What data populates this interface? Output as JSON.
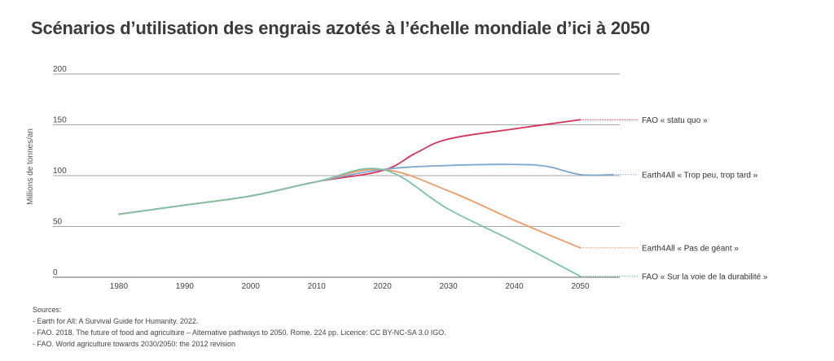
{
  "chart_data": {
    "type": "line",
    "title": "Scénarios d’utilisation des engrais azotés à l’échelle mondiale d’ici à 2050",
    "ylabel": "Millions de tonnes/an",
    "xlabel": "",
    "ylim": [
      0,
      200
    ],
    "xlim": [
      1970,
      2056
    ],
    "yticks": [
      0,
      50,
      100,
      150,
      200
    ],
    "xticks": [
      1980,
      1990,
      2000,
      2010,
      2020,
      2030,
      2040,
      2050
    ],
    "grid": true,
    "series": [
      {
        "name": "FAO « statu quo »",
        "color": "#d6335a",
        "x": [
          1980,
          1990,
          2000,
          2010,
          2020,
          2025,
          2030,
          2040,
          2050
        ],
        "y": [
          62,
          71,
          80,
          94,
          105,
          122,
          136,
          146,
          155
        ]
      },
      {
        "name": "Earth4All « Trop peu, trop tard »",
        "color": "#7ea7cf",
        "x": [
          1980,
          1990,
          2000,
          2010,
          2020,
          2030,
          2040,
          2045,
          2050,
          2055
        ],
        "y": [
          62,
          71,
          80,
          94,
          106,
          110,
          111,
          109,
          101,
          101
        ]
      },
      {
        "name": "Earth4All « Pas de géant »",
        "color": "#ee9a69",
        "x": [
          1980,
          1990,
          2000,
          2010,
          2020,
          2030,
          2040,
          2050
        ],
        "y": [
          62,
          71,
          80,
          94,
          106,
          85,
          56,
          29
        ]
      },
      {
        "name": "FAO « Sur la voie de la durabilité »",
        "color": "#7fc0a8",
        "x": [
          1980,
          1990,
          2000,
          2010,
          2020,
          2030,
          2040,
          2050
        ],
        "y": [
          62,
          71,
          80,
          94,
          106,
          67,
          35,
          1
        ]
      }
    ]
  },
  "sources": {
    "heading": "Sources:",
    "items": [
      "- Earth for All: A Survival Guide for Humanity. 2022.",
      "- FAO. 2018. The future of food and agriculture – Alternative pathways to 2050. Rome. 224 pp. Licence: CC BY-NC-SA 3.0 IGO.",
      "- FAO. World agriculture towards 2030/2050: the 2012 revision"
    ]
  }
}
